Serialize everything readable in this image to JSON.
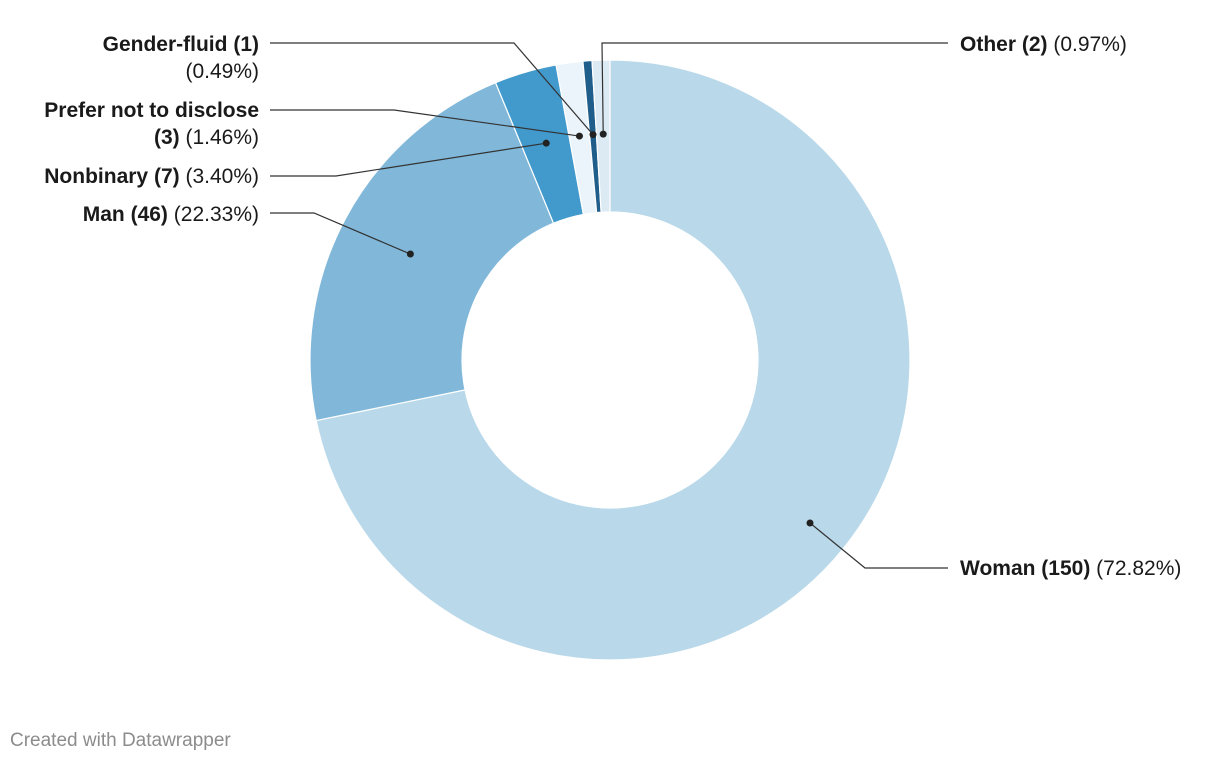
{
  "chart_data": {
    "type": "pie",
    "style": "donut",
    "categories": [
      "Woman",
      "Man",
      "Nonbinary",
      "Prefer not to disclose",
      "Gender-fluid",
      "Other"
    ],
    "counts": [
      150,
      46,
      7,
      3,
      1,
      2
    ],
    "values": [
      72.82,
      22.33,
      3.4,
      1.46,
      0.49,
      0.97
    ],
    "count_labels": [
      "(150)",
      "(46)",
      "(7)",
      "(3)",
      "(1)",
      "(2)"
    ],
    "percent_labels": [
      "(72.82%)",
      "(22.33%)",
      "(3.40%)",
      "(1.46%)",
      "(0.49%)",
      "(0.97%)"
    ],
    "colors": [
      "#b9d9ea",
      "#81b8da",
      "#4199cc",
      "#ebf4fa",
      "#1f5d8a",
      "#dceaf3"
    ],
    "legend": "none (callout labels)"
  },
  "credit": "Created with Datawrapper"
}
